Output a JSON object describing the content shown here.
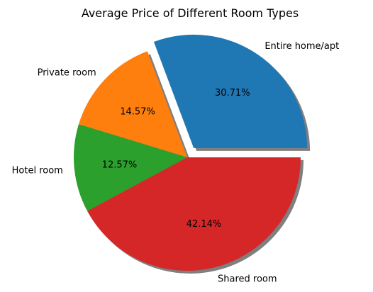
{
  "chart_data": {
    "type": "pie",
    "title": "Average Price of Different Room Types",
    "slices": [
      {
        "label": "Entire home/apt",
        "value": 30.71,
        "pct_label": "30.71%",
        "color": "#1f77b4",
        "exploded": true
      },
      {
        "label": "Private room",
        "value": 14.57,
        "pct_label": "14.57%",
        "color": "#ff7f0e",
        "exploded": false
      },
      {
        "label": "Hotel room",
        "value": 12.57,
        "pct_label": "12.57%",
        "color": "#2ca02c",
        "exploded": false
      },
      {
        "label": "Shared room",
        "value": 42.14,
        "pct_label": "42.14%",
        "color": "#d62728",
        "exploded": false
      }
    ],
    "shadow": true,
    "start_angle": 0,
    "direction": "counterclockwise"
  }
}
